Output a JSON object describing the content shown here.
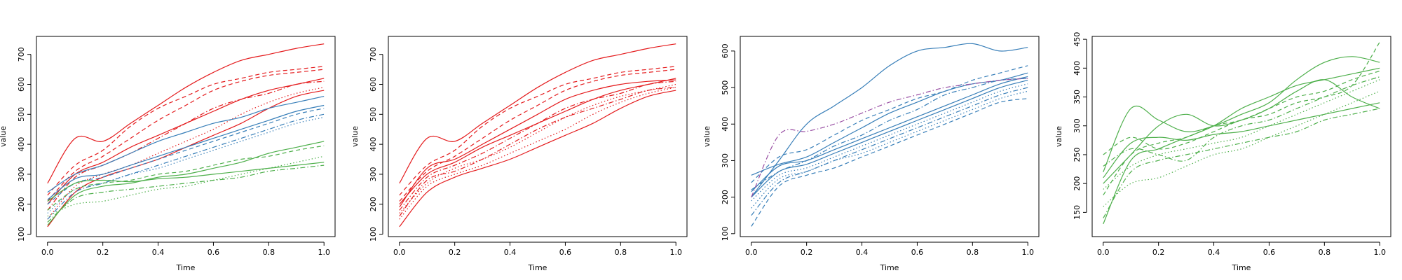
{
  "chart_data": [
    {
      "type": "line",
      "xlabel": "Time",
      "ylabel": "value",
      "xlim": [
        -0.04,
        1.04
      ],
      "ylim": [
        92,
        760
      ],
      "xticks": [
        0.0,
        0.2,
        0.4,
        0.6,
        0.8,
        1.0
      ],
      "xtick_labels": [
        "0.0",
        "0.2",
        "0.4",
        "0.6",
        "0.8",
        "1.0"
      ],
      "yticks": [
        100,
        200,
        300,
        400,
        500,
        600,
        700
      ],
      "ytick_labels": [
        "100",
        "200",
        "300",
        "400",
        "500",
        "600",
        "700"
      ],
      "grid": false,
      "legend": "none",
      "x": [
        0.0,
        0.1,
        0.2,
        0.3,
        0.4,
        0.5,
        0.6,
        0.7,
        0.8,
        0.9,
        1.0
      ],
      "series": [
        {
          "color": "#e41a1c",
          "style": "solid",
          "values": [
            270,
            420,
            410,
            470,
            530,
            590,
            640,
            680,
            700,
            720,
            735
          ]
        },
        {
          "color": "#e41a1c",
          "style": "dashed",
          "values": [
            230,
            330,
            380,
            460,
            520,
            560,
            600,
            620,
            640,
            650,
            660
          ]
        },
        {
          "color": "#e41a1c",
          "style": "solid",
          "values": [
            200,
            300,
            340,
            390,
            430,
            470,
            510,
            550,
            580,
            600,
            620
          ]
        },
        {
          "color": "#e41a1c",
          "style": "dotted",
          "values": [
            150,
            260,
            300,
            330,
            370,
            410,
            450,
            500,
            540,
            570,
            590
          ]
        },
        {
          "color": "#e41a1c",
          "style": "dashdot",
          "values": [
            180,
            290,
            330,
            370,
            420,
            470,
            520,
            550,
            570,
            600,
            610
          ]
        },
        {
          "color": "#e41a1c",
          "style": "solid",
          "values": [
            125,
            240,
            290,
            320,
            350,
            390,
            430,
            470,
            520,
            560,
            580
          ]
        },
        {
          "color": "#e41a1c",
          "style": "dashed",
          "values": [
            210,
            310,
            360,
            420,
            480,
            530,
            580,
            610,
            630,
            640,
            650
          ]
        },
        {
          "color": "#377eb8",
          "style": "solid",
          "values": [
            240,
            300,
            330,
            370,
            410,
            440,
            470,
            490,
            520,
            540,
            560
          ]
        },
        {
          "color": "#377eb8",
          "style": "dashed",
          "values": [
            200,
            270,
            290,
            320,
            350,
            380,
            410,
            440,
            470,
            500,
            520
          ]
        },
        {
          "color": "#377eb8",
          "style": "dotted",
          "values": [
            170,
            250,
            270,
            300,
            320,
            350,
            380,
            410,
            440,
            470,
            490
          ]
        },
        {
          "color": "#377eb8",
          "style": "solid",
          "values": [
            215,
            285,
            300,
            330,
            360,
            390,
            420,
            450,
            480,
            510,
            530
          ]
        },
        {
          "color": "#377eb8",
          "style": "dashdot",
          "values": [
            150,
            240,
            270,
            300,
            330,
            360,
            390,
            420,
            450,
            480,
            500
          ]
        },
        {
          "color": "#4daf4a",
          "style": "solid",
          "values": [
            130,
            230,
            260,
            270,
            290,
            300,
            320,
            340,
            370,
            390,
            410
          ]
        },
        {
          "color": "#4daf4a",
          "style": "dashed",
          "values": [
            180,
            250,
            270,
            280,
            300,
            310,
            330,
            350,
            360,
            380,
            395
          ]
        },
        {
          "color": "#4daf4a",
          "style": "dotted",
          "values": [
            160,
            200,
            210,
            230,
            250,
            260,
            280,
            300,
            320,
            340,
            360
          ]
        },
        {
          "color": "#4daf4a",
          "style": "solid",
          "values": [
            210,
            270,
            280,
            275,
            285,
            290,
            300,
            310,
            320,
            330,
            340
          ]
        },
        {
          "color": "#4daf4a",
          "style": "dashdot",
          "values": [
            140,
            220,
            240,
            250,
            260,
            270,
            280,
            290,
            310,
            320,
            330
          ]
        }
      ]
    },
    {
      "type": "line",
      "xlabel": "Time",
      "ylabel": "value",
      "xlim": [
        -0.04,
        1.04
      ],
      "ylim": [
        92,
        760
      ],
      "xticks": [
        0.0,
        0.2,
        0.4,
        0.6,
        0.8,
        1.0
      ],
      "xtick_labels": [
        "0.0",
        "0.2",
        "0.4",
        "0.6",
        "0.8",
        "1.0"
      ],
      "yticks": [
        100,
        200,
        300,
        400,
        500,
        600,
        700
      ],
      "ytick_labels": [
        "100",
        "200",
        "300",
        "400",
        "500",
        "600",
        "700"
      ],
      "grid": false,
      "legend": "none",
      "x": [
        0.0,
        0.1,
        0.2,
        0.3,
        0.4,
        0.5,
        0.6,
        0.7,
        0.8,
        0.9,
        1.0
      ],
      "series": [
        {
          "color": "#e41a1c",
          "style": "solid",
          "values": [
            270,
            420,
            410,
            470,
            530,
            590,
            640,
            680,
            700,
            720,
            735
          ]
        },
        {
          "color": "#e41a1c",
          "style": "dashed",
          "values": [
            230,
            330,
            380,
            460,
            520,
            560,
            600,
            620,
            640,
            650,
            660
          ]
        },
        {
          "color": "#e41a1c",
          "style": "solid",
          "values": [
            200,
            300,
            340,
            390,
            430,
            470,
            510,
            550,
            580,
            600,
            620
          ]
        },
        {
          "color": "#e41a1c",
          "style": "dotted",
          "values": [
            150,
            260,
            300,
            330,
            370,
            410,
            450,
            500,
            540,
            570,
            590
          ]
        },
        {
          "color": "#e41a1c",
          "style": "dashdot",
          "values": [
            180,
            290,
            330,
            370,
            420,
            470,
            520,
            550,
            570,
            600,
            610
          ]
        },
        {
          "color": "#e41a1c",
          "style": "solid",
          "values": [
            125,
            240,
            290,
            320,
            350,
            390,
            430,
            470,
            520,
            560,
            580
          ]
        },
        {
          "color": "#e41a1c",
          "style": "dashed",
          "values": [
            210,
            310,
            360,
            420,
            480,
            530,
            580,
            610,
            630,
            640,
            650
          ]
        },
        {
          "color": "#e41a1c",
          "style": "dotted",
          "values": [
            170,
            270,
            320,
            350,
            390,
            440,
            490,
            530,
            560,
            580,
            600
          ]
        },
        {
          "color": "#e41a1c",
          "style": "solid",
          "values": [
            190,
            320,
            350,
            400,
            450,
            500,
            550,
            580,
            600,
            610,
            615
          ]
        },
        {
          "color": "#e41a1c",
          "style": "dashdot",
          "values": [
            160,
            280,
            310,
            350,
            400,
            450,
            490,
            520,
            550,
            580,
            590
          ]
        }
      ]
    },
    {
      "type": "line",
      "xlabel": "Time",
      "ylabel": "value",
      "xlim": [
        -0.04,
        1.04
      ],
      "ylim": [
        92,
        640
      ],
      "xticks": [
        0.0,
        0.2,
        0.4,
        0.6,
        0.8,
        1.0
      ],
      "xtick_labels": [
        "0.0",
        "0.2",
        "0.4",
        "0.6",
        "0.8",
        "1.0"
      ],
      "yticks": [
        100,
        200,
        300,
        400,
        500,
        600
      ],
      "ytick_labels": [
        "100",
        "200",
        "300",
        "400",
        "500",
        "600"
      ],
      "grid": false,
      "legend": "none",
      "x": [
        0.0,
        0.1,
        0.2,
        0.3,
        0.4,
        0.5,
        0.6,
        0.7,
        0.8,
        0.9,
        1.0
      ],
      "series": [
        {
          "color": "#377eb8",
          "style": "solid",
          "values": [
            200,
            300,
            400,
            450,
            500,
            560,
            600,
            610,
            620,
            600,
            610
          ]
        },
        {
          "color": "#377eb8",
          "style": "dashed",
          "values": [
            240,
            310,
            330,
            370,
            410,
            440,
            470,
            490,
            520,
            540,
            560
          ]
        },
        {
          "color": "#377eb8",
          "style": "solid",
          "values": [
            200,
            270,
            290,
            320,
            350,
            380,
            410,
            440,
            470,
            500,
            520
          ]
        },
        {
          "color": "#377eb8",
          "style": "dotted",
          "values": [
            170,
            250,
            270,
            300,
            320,
            350,
            380,
            410,
            440,
            470,
            490
          ]
        },
        {
          "color": "#377eb8",
          "style": "solid",
          "values": [
            215,
            285,
            300,
            330,
            360,
            390,
            420,
            450,
            480,
            510,
            530
          ]
        },
        {
          "color": "#377eb8",
          "style": "dashdot",
          "values": [
            150,
            240,
            270,
            300,
            330,
            360,
            390,
            420,
            450,
            480,
            500
          ]
        },
        {
          "color": "#377eb8",
          "style": "dashed",
          "values": [
            120,
            230,
            260,
            280,
            310,
            340,
            370,
            400,
            430,
            460,
            470
          ]
        },
        {
          "color": "#377eb8",
          "style": "solid",
          "values": [
            260,
            290,
            310,
            350,
            390,
            430,
            460,
            490,
            510,
            520,
            540
          ]
        },
        {
          "color": "#377eb8",
          "style": "dotted",
          "values": [
            190,
            260,
            280,
            310,
            340,
            370,
            400,
            430,
            460,
            490,
            510
          ]
        },
        {
          "color": "#377eb8",
          "style": "dashdot",
          "values": [
            220,
            270,
            300,
            340,
            370,
            410,
            440,
            480,
            500,
            520,
            525
          ]
        },
        {
          "color": "#984ea3",
          "style": "dashdot",
          "values": [
            200,
            370,
            380,
            400,
            430,
            460,
            480,
            500,
            510,
            520,
            525
          ]
        }
      ]
    },
    {
      "type": "line",
      "xlabel": "Time",
      "ylabel": "value",
      "xlim": [
        -0.04,
        1.04
      ],
      "ylim": [
        108,
        455
      ],
      "xticks": [
        0.0,
        0.2,
        0.4,
        0.6,
        0.8,
        1.0
      ],
      "xtick_labels": [
        "0.0",
        "0.2",
        "0.4",
        "0.6",
        "0.8",
        "1.0"
      ],
      "yticks": [
        150,
        200,
        250,
        300,
        350,
        400,
        450
      ],
      "ytick_labels": [
        "150",
        "200",
        "250",
        "300",
        "350",
        "400",
        "450"
      ],
      "grid": false,
      "legend": "none",
      "x": [
        0.0,
        0.1,
        0.2,
        0.3,
        0.4,
        0.5,
        0.6,
        0.7,
        0.8,
        0.9,
        1.0
      ],
      "series": [
        {
          "color": "#4daf4a",
          "style": "solid",
          "values": [
            220,
            330,
            310,
            290,
            300,
            320,
            340,
            380,
            410,
            420,
            410
          ]
        },
        {
          "color": "#4daf4a",
          "style": "dashed",
          "values": [
            180,
            250,
            270,
            280,
            300,
            310,
            330,
            350,
            360,
            380,
            395
          ]
        },
        {
          "color": "#4daf4a",
          "style": "dotted",
          "values": [
            160,
            200,
            210,
            230,
            250,
            260,
            280,
            300,
            320,
            340,
            360
          ]
        },
        {
          "color": "#4daf4a",
          "style": "solid",
          "values": [
            210,
            270,
            280,
            275,
            285,
            290,
            300,
            310,
            320,
            330,
            340
          ]
        },
        {
          "color": "#4daf4a",
          "style": "dashdot",
          "values": [
            140,
            220,
            240,
            250,
            260,
            270,
            280,
            290,
            310,
            320,
            330
          ]
        },
        {
          "color": "#4daf4a",
          "style": "solid",
          "values": [
            130,
            240,
            260,
            280,
            300,
            330,
            350,
            370,
            380,
            390,
            400
          ]
        },
        {
          "color": "#4daf4a",
          "style": "dashed",
          "values": [
            250,
            280,
            260,
            270,
            290,
            310,
            320,
            340,
            350,
            370,
            445
          ]
        },
        {
          "color": "#4daf4a",
          "style": "solid",
          "values": [
            200,
            250,
            300,
            320,
            300,
            310,
            330,
            360,
            380,
            350,
            330
          ]
        },
        {
          "color": "#4daf4a",
          "style": "dotted",
          "values": [
            190,
            230,
            250,
            260,
            270,
            280,
            300,
            320,
            340,
            360,
            380
          ]
        },
        {
          "color": "#4daf4a",
          "style": "dashdot",
          "values": [
            230,
            260,
            250,
            240,
            280,
            300,
            310,
            330,
            350,
            370,
            385
          ]
        }
      ]
    }
  ]
}
